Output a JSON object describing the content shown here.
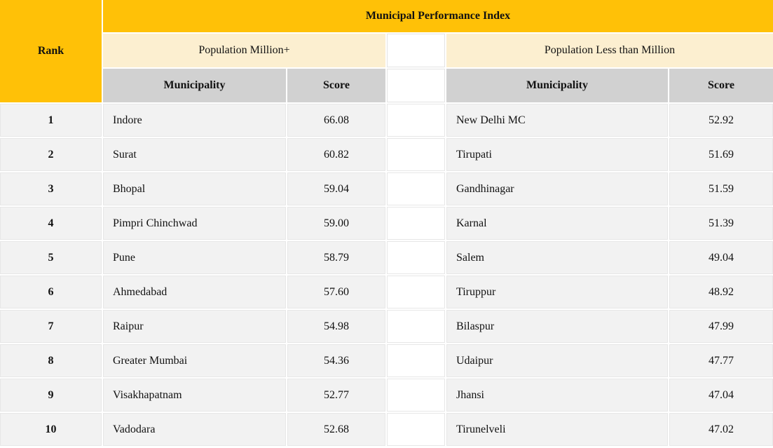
{
  "table": {
    "title": "Municipal Performance Index",
    "rank_header": "Rank",
    "groups": [
      {
        "label": "Population Million+",
        "columns": [
          "Municipality",
          "Score"
        ]
      },
      {
        "label": "Population Less than Million",
        "columns": [
          "Municipality",
          "Score"
        ]
      }
    ],
    "rows": [
      {
        "rank": "1",
        "left": {
          "municipality": "Indore",
          "score": "66.08"
        },
        "right": {
          "municipality": "New Delhi MC",
          "score": "52.92"
        }
      },
      {
        "rank": "2",
        "left": {
          "municipality": "Surat",
          "score": "60.82"
        },
        "right": {
          "municipality": "Tirupati",
          "score": "51.69"
        }
      },
      {
        "rank": "3",
        "left": {
          "municipality": "Bhopal",
          "score": "59.04"
        },
        "right": {
          "municipality": "Gandhinagar",
          "score": "51.59"
        }
      },
      {
        "rank": "4",
        "left": {
          "municipality": "Pimpri Chinchwad",
          "score": "59.00"
        },
        "right": {
          "municipality": "Karnal",
          "score": "51.39"
        }
      },
      {
        "rank": "5",
        "left": {
          "municipality": "Pune",
          "score": "58.79"
        },
        "right": {
          "municipality": "Salem",
          "score": "49.04"
        }
      },
      {
        "rank": "6",
        "left": {
          "municipality": "Ahmedabad",
          "score": "57.60"
        },
        "right": {
          "municipality": "Tiruppur",
          "score": "48.92"
        }
      },
      {
        "rank": "7",
        "left": {
          "municipality": "Raipur",
          "score": "54.98"
        },
        "right": {
          "municipality": "Bilaspur",
          "score": "47.99"
        }
      },
      {
        "rank": "8",
        "left": {
          "municipality": "Greater Mumbai",
          "score": "54.36"
        },
        "right": {
          "municipality": "Udaipur",
          "score": "47.77"
        }
      },
      {
        "rank": "9",
        "left": {
          "municipality": "Visakhapatnam",
          "score": "52.77"
        },
        "right": {
          "municipality": "Jhansi",
          "score": "47.04"
        }
      },
      {
        "rank": "10",
        "left": {
          "municipality": "Vadodara",
          "score": "52.68"
        },
        "right": {
          "municipality": "Tirunelveli",
          "score": "47.02"
        }
      }
    ],
    "colors": {
      "header_gold": "#FFC107",
      "group_cream": "#FCEFD0",
      "subheader_gray": "#D1D1D1",
      "row_bg": "#F2F2F2",
      "spacer_white": "#FFFFFF",
      "grid_line": "#E7E7E7"
    }
  }
}
